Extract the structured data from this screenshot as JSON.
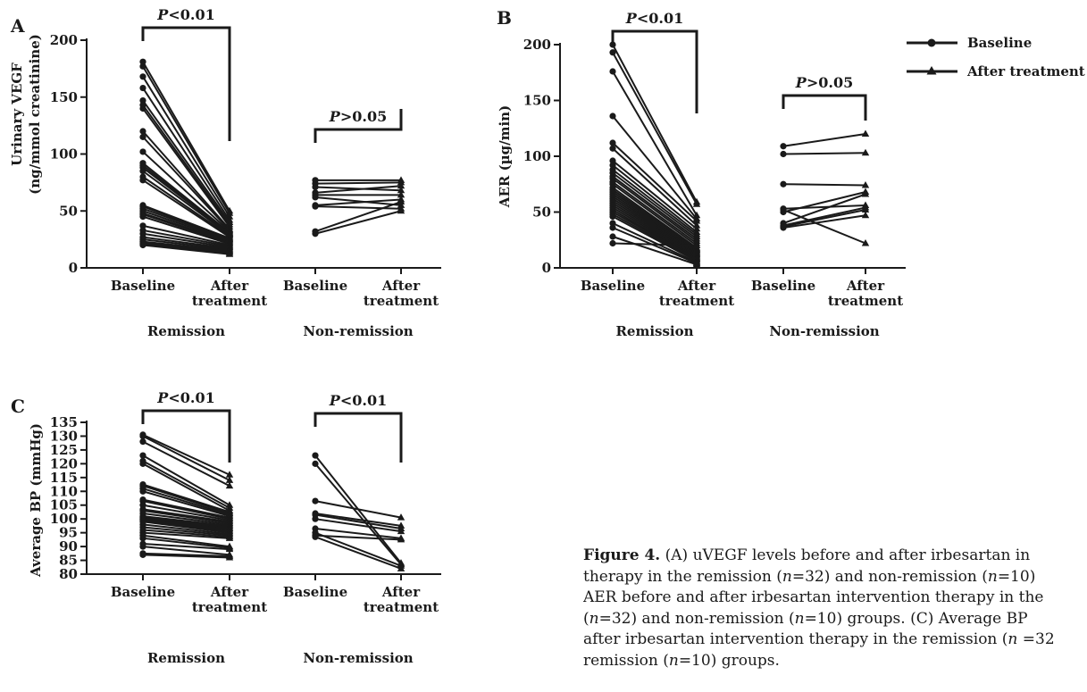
{
  "panels": [
    {
      "label": "A",
      "ylabel_lines": [
        "Urinary VEGF",
        "(ng/mmol creatinine)"
      ],
      "yticks": [
        0,
        50,
        100,
        150,
        200
      ],
      "ylim": [
        0,
        200
      ],
      "xtick_labels": [
        [
          "Baseline"
        ],
        [
          "After",
          "treatment"
        ],
        [
          "Baseline"
        ],
        [
          "After",
          "treatment"
        ]
      ],
      "group_labels": [
        "Remission",
        "Non-remission"
      ],
      "comparisons": [
        {
          "p_letter": "P",
          "p_rest": "<0.01"
        },
        {
          "p_letter": "P",
          "p_rest": ">0.05"
        }
      ]
    },
    {
      "label": "B",
      "ylabel_lines": [
        "AER (µg/min)"
      ],
      "yticks": [
        0,
        50,
        100,
        150,
        200
      ],
      "ylim": [
        0,
        200
      ],
      "xtick_labels": [
        [
          "Baseline"
        ],
        [
          "After",
          "treatment"
        ],
        [
          "Baseline"
        ],
        [
          "After",
          "treatment"
        ]
      ],
      "group_labels": [
        "Remission",
        "Non-remission"
      ],
      "comparisons": [
        {
          "p_letter": "P",
          "p_rest": "<0.01"
        },
        {
          "p_letter": "P",
          "p_rest": ">0.05"
        }
      ]
    },
    {
      "label": "C",
      "ylabel_lines": [
        "Average BP (mmHg)"
      ],
      "yticks": [
        80,
        85,
        90,
        95,
        100,
        105,
        110,
        115,
        120,
        125,
        130,
        135
      ],
      "ylim": [
        80,
        135
      ],
      "xtick_labels": [
        [
          "Baseline"
        ],
        [
          "After",
          "treatment"
        ],
        [
          "Baseline"
        ],
        [
          "After",
          "treatment"
        ]
      ],
      "group_labels": [
        "Remission",
        "Non-remission"
      ],
      "comparisons": [
        {
          "p_letter": "P",
          "p_rest": "<0.01"
        },
        {
          "p_letter": "P",
          "p_rest": "<0.01"
        }
      ]
    }
  ],
  "legend": {
    "baseline": "Baseline",
    "after": "After treatment"
  },
  "caption": {
    "lines": [
      [
        {
          "t": "Figure 4.",
          "b": true
        },
        {
          "t": " (A) uVEGF levels before and after irbesartan in"
        }
      ],
      [
        {
          "t": "therapy in the remission ("
        },
        {
          "t": "n",
          "i": true
        },
        {
          "t": "=32) and non-remission ("
        },
        {
          "t": "n",
          "i": true
        },
        {
          "t": "=10)"
        }
      ],
      [
        {
          "t": "AER before and after irbesartan intervention therapy in the"
        }
      ],
      [
        {
          "t": "("
        },
        {
          "t": "n",
          "i": true
        },
        {
          "t": "=32) and non-remission ("
        },
        {
          "t": "n",
          "i": true
        },
        {
          "t": "=10) groups. (C) Average BP"
        }
      ],
      [
        {
          "t": "after irbesartan intervention therapy in the remission ("
        },
        {
          "t": "n",
          "i": true
        },
        {
          "t": " =32"
        }
      ],
      [
        {
          "t": "remission ("
        },
        {
          "t": "n",
          "i": true
        },
        {
          "t": "=10) groups."
        }
      ]
    ]
  },
  "chart_data": [
    {
      "type": "line",
      "panel": "A",
      "ylabel": "Urinary VEGF (ng/mmol creatinine)",
      "ylim": [
        0,
        200
      ],
      "groups": [
        {
          "name": "Remission",
          "pairs": [
            [
              181,
              50
            ],
            [
              177,
              48
            ],
            [
              168,
              45
            ],
            [
              158,
              42
            ],
            [
              147,
              40
            ],
            [
              143,
              38
            ],
            [
              140,
              36
            ],
            [
              120,
              34
            ],
            [
              115,
              33
            ],
            [
              102,
              32
            ],
            [
              92,
              31
            ],
            [
              90,
              30
            ],
            [
              88,
              30
            ],
            [
              85,
              29
            ],
            [
              80,
              28
            ],
            [
              77,
              27
            ],
            [
              55,
              26
            ],
            [
              54,
              25
            ],
            [
              52,
              25
            ],
            [
              50,
              24
            ],
            [
              48,
              23
            ],
            [
              47,
              22
            ],
            [
              45,
              21
            ],
            [
              37,
              20
            ],
            [
              33,
              19
            ],
            [
              30,
              18
            ],
            [
              27,
              17
            ],
            [
              25,
              16
            ],
            [
              23,
              15
            ],
            [
              22,
              14
            ],
            [
              21,
              13
            ],
            [
              20,
              12
            ]
          ]
        },
        {
          "name": "Non-remission",
          "pairs": [
            [
              77,
              77
            ],
            [
              74,
              75
            ],
            [
              71,
              68
            ],
            [
              66,
              72
            ],
            [
              64,
              64
            ],
            [
              62,
              55
            ],
            [
              55,
              60
            ],
            [
              54,
              52
            ],
            [
              32,
              58
            ],
            [
              30,
              50
            ]
          ]
        }
      ]
    },
    {
      "type": "line",
      "panel": "B",
      "ylabel": "AER (µg/min)",
      "ylim": [
        0,
        200
      ],
      "groups": [
        {
          "name": "Remission",
          "pairs": [
            [
              200,
              59
            ],
            [
              193,
              57
            ],
            [
              176,
              47
            ],
            [
              136,
              44
            ],
            [
              112,
              42
            ],
            [
              107,
              38
            ],
            [
              96,
              35
            ],
            [
              92,
              32
            ],
            [
              88,
              30
            ],
            [
              85,
              28
            ],
            [
              82,
              26
            ],
            [
              80,
              24
            ],
            [
              77,
              22
            ],
            [
              75,
              20
            ],
            [
              72,
              18
            ],
            [
              70,
              17
            ],
            [
              68,
              16
            ],
            [
              66,
              15
            ],
            [
              64,
              14
            ],
            [
              62,
              13
            ],
            [
              60,
              12
            ],
            [
              58,
              11
            ],
            [
              56,
              10
            ],
            [
              54,
              9
            ],
            [
              52,
              8
            ],
            [
              50,
              8
            ],
            [
              48,
              7
            ],
            [
              46,
              6
            ],
            [
              40,
              5
            ],
            [
              36,
              4
            ],
            [
              28,
              3
            ],
            [
              22,
              20
            ]
          ]
        },
        {
          "name": "Non-remission",
          "pairs": [
            [
              109,
              120
            ],
            [
              102,
              103
            ],
            [
              75,
              74
            ],
            [
              53,
              56
            ],
            [
              52,
              22
            ],
            [
              50,
              68
            ],
            [
              40,
              66
            ],
            [
              38,
              54
            ],
            [
              37,
              52
            ],
            [
              36,
              47
            ]
          ]
        }
      ]
    },
    {
      "type": "line",
      "panel": "C",
      "ylabel": "Average BP (mmHg)",
      "ylim": [
        80,
        135
      ],
      "groups": [
        {
          "name": "Remission",
          "pairs": [
            [
              130.5,
              116
            ],
            [
              130,
              114
            ],
            [
              128,
              112
            ],
            [
              123,
              105
            ],
            [
              121,
              104
            ],
            [
              120,
              103
            ],
            [
              112.5,
              102.5
            ],
            [
              112,
              102
            ],
            [
              111,
              101.5
            ],
            [
              110,
              101
            ],
            [
              107,
              100.5
            ],
            [
              106.5,
              100
            ],
            [
              105,
              99.5
            ],
            [
              103.5,
              99
            ],
            [
              103,
              98.5
            ],
            [
              102,
              98
            ],
            [
              101,
              97.5
            ],
            [
              100.5,
              97
            ],
            [
              100,
              96.5
            ],
            [
              100,
              96
            ],
            [
              99.5,
              95.5
            ],
            [
              99,
              95
            ],
            [
              98,
              94.5
            ],
            [
              97,
              94
            ],
            [
              96,
              93.5
            ],
            [
              95,
              93
            ],
            [
              94,
              90
            ],
            [
              93,
              89.5
            ],
            [
              91,
              89
            ],
            [
              90,
              87
            ],
            [
              87.5,
              86.5
            ],
            [
              87,
              86
            ]
          ]
        },
        {
          "name": "Non-remission",
          "pairs": [
            [
              123,
              84
            ],
            [
              120,
              83.5
            ],
            [
              106.5,
              100.5
            ],
            [
              102,
              97.5
            ],
            [
              101.5,
              96.5
            ],
            [
              100,
              95.5
            ],
            [
              96.5,
              93
            ],
            [
              95,
              83
            ],
            [
              94,
              92.5
            ],
            [
              93.5,
              82
            ]
          ]
        }
      ]
    }
  ]
}
